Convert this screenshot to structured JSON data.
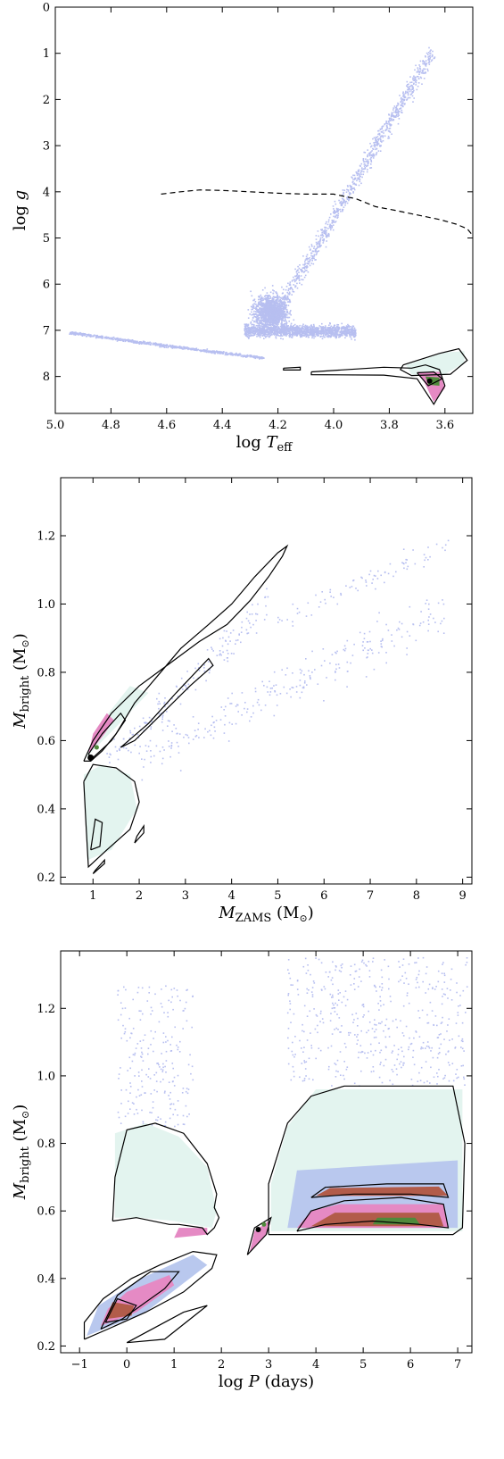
{
  "colors": {
    "scatter": "#b7bff0",
    "density_low": "#e3f4ef",
    "density_mid": "#b9c8ee",
    "density_high": "#e58ac4",
    "density_peak": "#b25c4a",
    "density_max": "#4f8a3c",
    "contour": "#000000"
  },
  "chart_data": [
    {
      "type": "scatter",
      "xlabel_main": "log ",
      "xlabel_italic": "T",
      "xlabel_sub": "eff",
      "ylabel_main": "log ",
      "ylabel_italic": "g",
      "xlim": [
        5.0,
        3.5
      ],
      "ylim": [
        0,
        8.8
      ],
      "yaxis_inverted": true,
      "x_ticks": [
        5.0,
        4.8,
        4.6,
        4.4,
        4.2,
        4.0,
        3.8,
        3.6
      ],
      "x_tick_labels": [
        "5.0",
        "4.8",
        "4.6",
        "4.4",
        "4.2",
        "4.0",
        "3.8",
        "3.6"
      ],
      "y_ticks": [
        0,
        1,
        2,
        3,
        4,
        5,
        6,
        7,
        8
      ],
      "y_tick_labels": [
        "0",
        "1",
        "2",
        "3",
        "4",
        "5",
        "6",
        "7",
        "8"
      ],
      "dashed_line": {
        "x": [
          4.62,
          4.55,
          4.48,
          4.4,
          4.3,
          4.2,
          4.1,
          4.0,
          3.92,
          3.85,
          3.78,
          3.7,
          3.62,
          3.56,
          3.52,
          3.5
        ],
        "y": [
          4.05,
          4.0,
          3.96,
          3.97,
          4.0,
          4.03,
          4.05,
          4.05,
          4.15,
          4.32,
          4.4,
          4.5,
          4.6,
          4.7,
          4.8,
          4.95
        ]
      },
      "contours": [
        {
          "x": [
            3.75,
            3.62,
            3.55,
            3.52,
            3.58,
            3.72,
            3.76,
            3.75
          ],
          "y": [
            7.75,
            7.5,
            7.4,
            7.65,
            7.95,
            7.98,
            7.85,
            7.75
          ]
        },
        {
          "x": [
            4.08,
            3.82,
            3.72,
            3.67,
            3.62,
            3.6,
            3.64,
            3.7,
            3.82,
            4.08,
            4.08
          ],
          "y": [
            7.9,
            7.8,
            7.82,
            7.75,
            7.85,
            8.2,
            8.6,
            8.05,
            7.97,
            7.96,
            7.9
          ]
        },
        {
          "x": [
            3.7,
            3.64,
            3.61,
            3.66,
            3.7
          ],
          "y": [
            7.92,
            7.9,
            8.05,
            8.2,
            7.92
          ]
        },
        {
          "x": [
            4.18,
            4.12,
            4.12,
            4.18,
            4.18
          ],
          "y": [
            7.82,
            7.8,
            7.86,
            7.86,
            7.82
          ]
        }
      ]
    },
    {
      "type": "scatter",
      "xlabel_italic": "M",
      "xlabel_sub": "ZAMS",
      "xlabel_unit": " (M",
      "xlabel_close": ")",
      "ylabel_italic": "M",
      "ylabel_sub": "bright",
      "ylabel_unit": " (M",
      "ylabel_close": ")",
      "xlim": [
        0.3,
        9.2
      ],
      "ylim": [
        0.18,
        1.37
      ],
      "x_ticks": [
        1,
        2,
        3,
        4,
        5,
        6,
        7,
        8,
        9
      ],
      "x_tick_labels": [
        "1",
        "2",
        "3",
        "4",
        "5",
        "6",
        "7",
        "8",
        "9"
      ],
      "y_ticks": [
        0.2,
        0.4,
        0.6,
        0.8,
        1.0,
        1.2
      ],
      "y_tick_labels": [
        "0.2",
        "0.4",
        "0.6",
        "0.8",
        "1.0",
        "1.2"
      ],
      "contours": [
        {
          "x": [
            0.8,
            1.0,
            1.4,
            2.0,
            2.7,
            3.3,
            3.9,
            4.4,
            4.8,
            5.1,
            5.2,
            5.0,
            4.5,
            4.0,
            3.5,
            2.9,
            2.4,
            1.9,
            1.5,
            1.2,
            0.95,
            0.8
          ],
          "y": [
            0.54,
            0.6,
            0.68,
            0.76,
            0.83,
            0.89,
            0.94,
            1.01,
            1.08,
            1.14,
            1.17,
            1.15,
            1.08,
            1.0,
            0.94,
            0.87,
            0.79,
            0.71,
            0.62,
            0.57,
            0.54,
            0.54
          ]
        },
        {
          "x": [
            1.6,
            2.2,
            2.8,
            3.5,
            3.6,
            3.1,
            2.5,
            1.9,
            1.6
          ],
          "y": [
            0.58,
            0.65,
            0.74,
            0.84,
            0.82,
            0.76,
            0.68,
            0.6,
            0.58
          ]
        },
        {
          "x": [
            0.8,
            0.85,
            0.9,
            1.3,
            1.8,
            2.0,
            1.9,
            1.5,
            1.0,
            0.8
          ],
          "y": [
            0.48,
            0.35,
            0.23,
            0.28,
            0.34,
            0.42,
            0.48,
            0.52,
            0.53,
            0.48
          ]
        },
        {
          "x": [
            0.95,
            1.15,
            1.2,
            1.05,
            0.95
          ],
          "y": [
            0.28,
            0.29,
            0.36,
            0.37,
            0.28
          ]
        },
        {
          "x": [
            1.9,
            2.1,
            2.1,
            1.95,
            1.9
          ],
          "y": [
            0.3,
            0.33,
            0.35,
            0.32,
            0.3
          ]
        },
        {
          "x": [
            1.0,
            1.25,
            1.25,
            1.05,
            1.0
          ],
          "y": [
            0.21,
            0.24,
            0.25,
            0.22,
            0.21
          ]
        },
        {
          "x": [
            0.9,
            1.2,
            1.6,
            1.7,
            1.4,
            1.0,
            0.9
          ],
          "y": [
            0.56,
            0.62,
            0.68,
            0.66,
            0.6,
            0.55,
            0.56
          ]
        }
      ]
    },
    {
      "type": "scatter",
      "xlabel_main": "log ",
      "xlabel_italic": "P",
      "xlabel_unit": " (days)",
      "ylabel_italic": "M",
      "ylabel_sub": "bright",
      "ylabel_unit": " (M",
      "ylabel_close": ")",
      "xlim": [
        -1.4,
        7.3
      ],
      "ylim": [
        0.18,
        1.37
      ],
      "x_ticks": [
        -1,
        0,
        1,
        2,
        3,
        4,
        5,
        6,
        7
      ],
      "x_tick_labels": [
        "−1",
        "0",
        "1",
        "2",
        "3",
        "4",
        "5",
        "6",
        "7"
      ],
      "y_ticks": [
        0.2,
        0.4,
        0.6,
        0.8,
        1.0,
        1.2
      ],
      "y_tick_labels": [
        "0.2",
        "0.4",
        "0.6",
        "0.8",
        "1.0",
        "1.2"
      ],
      "contours": [
        {
          "x": [
            -0.3,
            0.2,
            0.9,
            1.1,
            1.6,
            1.7,
            1.85,
            1.95,
            1.85,
            1.9,
            1.7,
            1.2,
            0.6,
            0.0,
            -0.25,
            -0.3
          ],
          "y": [
            0.57,
            0.58,
            0.56,
            0.56,
            0.55,
            0.53,
            0.55,
            0.58,
            0.61,
            0.65,
            0.74,
            0.83,
            0.86,
            0.84,
            0.7,
            0.57
          ]
        },
        {
          "x": [
            -0.9,
            -0.4,
            0.4,
            1.2,
            1.8,
            1.9,
            1.4,
            0.7,
            0.1,
            -0.5,
            -0.9,
            -0.9
          ],
          "y": [
            0.22,
            0.25,
            0.3,
            0.36,
            0.43,
            0.47,
            0.48,
            0.44,
            0.4,
            0.34,
            0.27,
            0.22
          ]
        },
        {
          "x": [
            -0.55,
            -0.1,
            0.8,
            1.1,
            0.5,
            -0.2,
            -0.55
          ],
          "y": [
            0.25,
            0.28,
            0.37,
            0.42,
            0.42,
            0.35,
            0.25
          ]
        },
        {
          "x": [
            -0.45,
            0.0,
            0.2,
            -0.2,
            -0.45
          ],
          "y": [
            0.27,
            0.28,
            0.32,
            0.34,
            0.27
          ]
        },
        {
          "x": [
            0.0,
            0.8,
            1.7,
            1.2,
            0.4,
            0.0
          ],
          "y": [
            0.21,
            0.22,
            0.32,
            0.3,
            0.24,
            0.21
          ]
        },
        {
          "x": [
            3.0,
            4.0,
            5.0,
            6.0,
            6.9,
            7.1,
            7.15,
            6.9,
            6.3,
            5.5,
            4.6,
            3.9,
            3.4,
            3.0,
            3.0
          ],
          "y": [
            0.53,
            0.53,
            0.53,
            0.53,
            0.53,
            0.55,
            0.8,
            0.97,
            0.97,
            0.97,
            0.97,
            0.94,
            0.86,
            0.68,
            0.53
          ]
        },
        {
          "x": [
            3.6,
            4.2,
            5.2,
            6.2,
            6.8,
            6.7,
            5.8,
            4.6,
            3.9,
            3.6
          ],
          "y": [
            0.54,
            0.56,
            0.57,
            0.56,
            0.55,
            0.62,
            0.64,
            0.63,
            0.6,
            0.54
          ]
        },
        {
          "x": [
            3.9,
            4.8,
            6.0,
            6.8,
            6.7,
            5.5,
            4.2,
            3.9
          ],
          "y": [
            0.64,
            0.65,
            0.65,
            0.64,
            0.68,
            0.68,
            0.67,
            0.64
          ]
        },
        {
          "x": [
            2.55,
            2.95,
            3.05,
            2.7,
            2.55
          ],
          "y": [
            0.47,
            0.53,
            0.58,
            0.55,
            0.47
          ]
        }
      ]
    }
  ]
}
